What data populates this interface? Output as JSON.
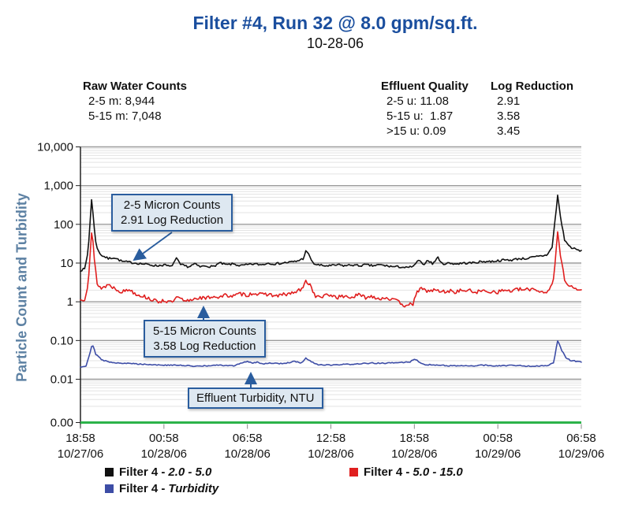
{
  "header": {
    "title": "Filter #4, Run 32 @ 8.0 gpm/sq.ft.",
    "subtitle": "10-28-06"
  },
  "stats": {
    "raw_water": {
      "heading": "Raw Water Counts",
      "lines": [
        "2-5 m: 8,944",
        "5-15 m: 7,048"
      ]
    },
    "effluent": {
      "heading": "Effluent Quality",
      "lines": [
        "2-5 u: 11.08",
        "5-15 u:  1.87",
        ">15 u: 0.09"
      ]
    },
    "log_reduction": {
      "heading": "Log Reduction",
      "lines": [
        "2.91",
        "3.58",
        "3.45"
      ]
    }
  },
  "y_axis_title": "Particle Count and Turbidity",
  "callouts": [
    {
      "line1": "2-5 Micron Counts",
      "line2": "2.91 Log Reduction"
    },
    {
      "line1": "5-15 Micron Counts",
      "line2": "3.58 Log Reduction"
    },
    {
      "line1": "Effluent Turbidity, NTU"
    }
  ],
  "legend": [
    {
      "label": "Filter 4 -",
      "qualifier": "2.0 - 5.0",
      "color": "#111111"
    },
    {
      "label": "Filter 4 -",
      "qualifier": "5.0 - 15.0",
      "color": "#e01f1f"
    },
    {
      "label": "Filter 4 -",
      "qualifier": "Turbidity",
      "color": "#3d4da6"
    }
  ],
  "colors": {
    "title_blue": "#1a4e9e",
    "axis_label_blue": "#5d81a3",
    "callout_border": "#2a5d9e",
    "callout_fill": "#dee8f1",
    "baseline_green": "#2cb34a",
    "major_grid": "#9b9b9b",
    "minor_grid": "#e3e3e3"
  },
  "chart_data": {
    "type": "line",
    "title": "Filter #4, Run 32 @ 8.0 gpm/sq.ft.",
    "subtitle": "10-28-06",
    "ylabel": "Particle Count and Turbidity",
    "y_scale": "log",
    "ylim": [
      0.001,
      10000
    ],
    "grid": "on",
    "legend_position": "bottom",
    "y_ticks": [
      "10,000",
      "1,000",
      "100",
      "10",
      "1",
      "0.10",
      "0.01",
      "0.00"
    ],
    "x_ticks": [
      {
        "time": "18:58",
        "date": "10/27/06"
      },
      {
        "time": "00:58",
        "date": "10/28/06"
      },
      {
        "time": "06:58",
        "date": "10/28/06"
      },
      {
        "time": "12:58",
        "date": "10/28/06"
      },
      {
        "time": "18:58",
        "date": "10/28/06"
      },
      {
        "time": "00:58",
        "date": "10/29/06"
      },
      {
        "time": "06:58",
        "date": "10/29/06"
      }
    ],
    "x_hours_range": [
      0,
      36
    ],
    "series": [
      {
        "id": "filter4-2-5",
        "name": "Filter 4 - 2.0 - 5.0",
        "color": "#111111",
        "seed": 7,
        "noise_log": 0.028,
        "points": [
          [
            0,
            6.5
          ],
          [
            0.3,
            7
          ],
          [
            0.55,
            20
          ],
          [
            0.8,
            430
          ],
          [
            1.0,
            80
          ],
          [
            1.15,
            25
          ],
          [
            1.5,
            16
          ],
          [
            2,
            13
          ],
          [
            2.4,
            14
          ],
          [
            3,
            11
          ],
          [
            3.5,
            10.5
          ],
          [
            4,
            10
          ],
          [
            4.5,
            9.5
          ],
          [
            5,
            9
          ],
          [
            5.5,
            8.5
          ],
          [
            6,
            9
          ],
          [
            6.5,
            8
          ],
          [
            6.9,
            13
          ],
          [
            7.2,
            9
          ],
          [
            7.8,
            8
          ],
          [
            8.2,
            9.5
          ],
          [
            8.6,
            8
          ],
          [
            9,
            8.5
          ],
          [
            9.5,
            8
          ],
          [
            10,
            10
          ],
          [
            10.5,
            9
          ],
          [
            11,
            9.5
          ],
          [
            11.5,
            8.5
          ],
          [
            12,
            9
          ],
          [
            12.5,
            9.5
          ],
          [
            13,
            9
          ],
          [
            13.5,
            10
          ],
          [
            14,
            9.5
          ],
          [
            14.5,
            10
          ],
          [
            15,
            10.5
          ],
          [
            15.5,
            11
          ],
          [
            16,
            13
          ],
          [
            16.2,
            20
          ],
          [
            16.45,
            16
          ],
          [
            16.7,
            10
          ],
          [
            17,
            9
          ],
          [
            17.5,
            8.5
          ],
          [
            18,
            8.5
          ],
          [
            18.5,
            9
          ],
          [
            19,
            8.5
          ],
          [
            19.5,
            9
          ],
          [
            20,
            8.5
          ],
          [
            20.5,
            9
          ],
          [
            21,
            8.5
          ],
          [
            21.5,
            9
          ],
          [
            22,
            8.5
          ],
          [
            22.5,
            8
          ],
          [
            23,
            8
          ],
          [
            23.5,
            7.5
          ],
          [
            24,
            8.5
          ],
          [
            24.3,
            12
          ],
          [
            24.6,
            9
          ],
          [
            25,
            12
          ],
          [
            25.3,
            9.5
          ],
          [
            25.7,
            14
          ],
          [
            26,
            9.5
          ],
          [
            26.5,
            10
          ],
          [
            27,
            9.5
          ],
          [
            27.5,
            10
          ],
          [
            28,
            10
          ],
          [
            28.5,
            10.5
          ],
          [
            29,
            11
          ],
          [
            29.5,
            11
          ],
          [
            30,
            11.5
          ],
          [
            30.5,
            12
          ],
          [
            31,
            12
          ],
          [
            31.5,
            13
          ],
          [
            32,
            13
          ],
          [
            32.5,
            14
          ],
          [
            33,
            15
          ],
          [
            33.5,
            16
          ],
          [
            33.9,
            25
          ],
          [
            34.3,
            550
          ],
          [
            34.55,
            120
          ],
          [
            34.8,
            40
          ],
          [
            35.1,
            28
          ],
          [
            35.4,
            24
          ],
          [
            35.7,
            22
          ],
          [
            36,
            20
          ]
        ]
      },
      {
        "id": "filter4-5-15",
        "name": "Filter 4 - 5.0 - 15.0",
        "color": "#e01f1f",
        "seed": 13,
        "noise_log": 0.05,
        "points": [
          [
            0,
            1.1
          ],
          [
            0.3,
            1.2
          ],
          [
            0.55,
            3
          ],
          [
            0.82,
            75
          ],
          [
            1.0,
            12
          ],
          [
            1.2,
            3
          ],
          [
            1.5,
            2.2
          ],
          [
            2,
            2.8
          ],
          [
            2.5,
            2.2
          ],
          [
            3,
            1.8
          ],
          [
            3.5,
            2.1
          ],
          [
            4,
            1.6
          ],
          [
            4.5,
            1.4
          ],
          [
            5,
            1.2
          ],
          [
            5.5,
            1.0
          ],
          [
            6,
            1.1
          ],
          [
            6.5,
            0.95
          ],
          [
            7,
            1.3
          ],
          [
            7.5,
            1.0
          ],
          [
            8,
            1.15
          ],
          [
            8.5,
            1.3
          ],
          [
            9,
            1.2
          ],
          [
            9.5,
            1.4
          ],
          [
            10,
            1.3
          ],
          [
            10.5,
            1.5
          ],
          [
            11,
            1.4
          ],
          [
            11.5,
            1.6
          ],
          [
            12,
            1.5
          ],
          [
            12.5,
            1.7
          ],
          [
            13,
            1.5
          ],
          [
            13.5,
            1.6
          ],
          [
            14,
            1.4
          ],
          [
            14.5,
            1.5
          ],
          [
            15,
            1.6
          ],
          [
            15.5,
            1.8
          ],
          [
            16,
            2.2
          ],
          [
            16.2,
            3.5
          ],
          [
            16.5,
            2.8
          ],
          [
            16.8,
            1.6
          ],
          [
            17,
            1.3
          ],
          [
            17.5,
            1.4
          ],
          [
            18,
            1.5
          ],
          [
            18.5,
            1.3
          ],
          [
            19,
            1.4
          ],
          [
            19.5,
            1.3
          ],
          [
            20,
            1.5
          ],
          [
            20.5,
            1.3
          ],
          [
            21,
            1.4
          ],
          [
            21.5,
            1.2
          ],
          [
            22,
            1.3
          ],
          [
            22.5,
            1.1
          ],
          [
            23,
            0.95
          ],
          [
            23.3,
            0.8
          ],
          [
            23.6,
            0.9
          ],
          [
            23.9,
            0.75
          ],
          [
            24.15,
            1.9
          ],
          [
            24.5,
            2.1
          ],
          [
            25,
            1.9
          ],
          [
            25.5,
            2.0
          ],
          [
            26,
            1.8
          ],
          [
            26.5,
            1.9
          ],
          [
            27,
            1.8
          ],
          [
            27.5,
            2.0
          ],
          [
            28,
            1.9
          ],
          [
            28.5,
            1.8
          ],
          [
            29,
            1.9
          ],
          [
            29.5,
            1.85
          ],
          [
            30,
            1.8
          ],
          [
            30.5,
            2.0
          ],
          [
            31,
            1.9
          ],
          [
            31.5,
            2.1
          ],
          [
            32,
            2.0
          ],
          [
            32.5,
            2.2
          ],
          [
            33,
            1.9
          ],
          [
            33.5,
            1.7
          ],
          [
            34,
            3.5
          ],
          [
            34.3,
            60
          ],
          [
            34.55,
            12
          ],
          [
            34.8,
            4
          ],
          [
            35.1,
            2.6
          ],
          [
            35.4,
            2.3
          ],
          [
            35.7,
            2.1
          ],
          [
            36,
            1.9
          ]
        ]
      },
      {
        "id": "filter4-turbidity",
        "name": "Filter 4 - Turbidity",
        "color": "#3d4da6",
        "seed": 29,
        "noise_log": 0.014,
        "points": [
          [
            0,
            0.021
          ],
          [
            0.4,
            0.022
          ],
          [
            0.7,
            0.05
          ],
          [
            0.85,
            0.085
          ],
          [
            1.1,
            0.045
          ],
          [
            1.5,
            0.032
          ],
          [
            2,
            0.028
          ],
          [
            3,
            0.026
          ],
          [
            4,
            0.025
          ],
          [
            5,
            0.024
          ],
          [
            6,
            0.023
          ],
          [
            7,
            0.023
          ],
          [
            8,
            0.022
          ],
          [
            9,
            0.022
          ],
          [
            10,
            0.023
          ],
          [
            11,
            0.022
          ],
          [
            11.5,
            0.026
          ],
          [
            12,
            0.029
          ],
          [
            12.3,
            0.026
          ],
          [
            12.7,
            0.028
          ],
          [
            13,
            0.025
          ],
          [
            13.5,
            0.026
          ],
          [
            14,
            0.026
          ],
          [
            14.5,
            0.025
          ],
          [
            15,
            0.027
          ],
          [
            15.4,
            0.029
          ],
          [
            15.8,
            0.026
          ],
          [
            16,
            0.028
          ],
          [
            16.2,
            0.035
          ],
          [
            16.6,
            0.028
          ],
          [
            17,
            0.024
          ],
          [
            18,
            0.023
          ],
          [
            19,
            0.024
          ],
          [
            20,
            0.025
          ],
          [
            21,
            0.026
          ],
          [
            22,
            0.026
          ],
          [
            23,
            0.027
          ],
          [
            23.7,
            0.028
          ],
          [
            24.05,
            0.034
          ],
          [
            24.4,
            0.027
          ],
          [
            24.8,
            0.024
          ],
          [
            25.5,
            0.023
          ],
          [
            26,
            0.023
          ],
          [
            27,
            0.022
          ],
          [
            28,
            0.022
          ],
          [
            29,
            0.023
          ],
          [
            30,
            0.022
          ],
          [
            31,
            0.023
          ],
          [
            32,
            0.022
          ],
          [
            33,
            0.022
          ],
          [
            33.6,
            0.023
          ],
          [
            34,
            0.026
          ],
          [
            34.3,
            0.1
          ],
          [
            34.6,
            0.055
          ],
          [
            34.9,
            0.035
          ],
          [
            35.2,
            0.031
          ],
          [
            35.6,
            0.029
          ],
          [
            36,
            0.028
          ]
        ]
      }
    ]
  }
}
